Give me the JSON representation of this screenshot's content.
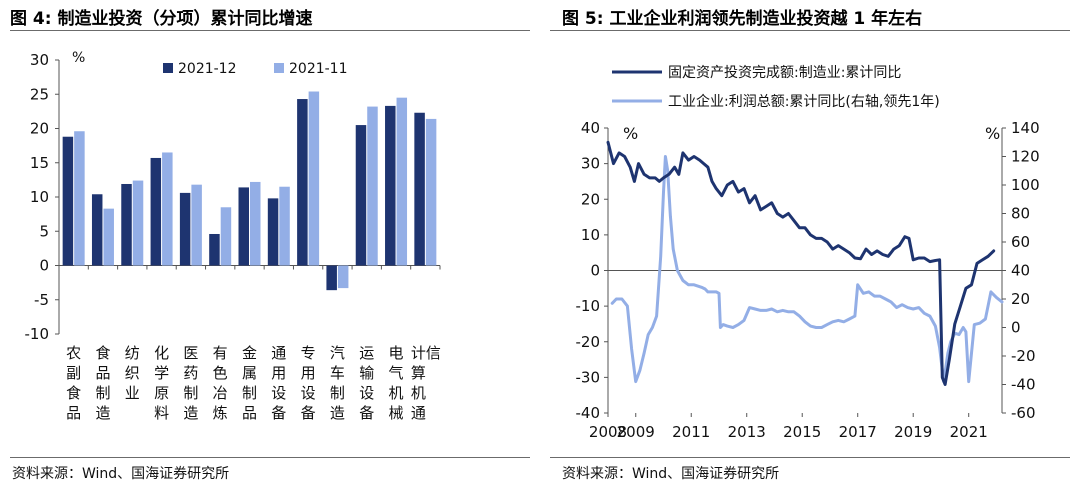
{
  "colors": {
    "navy": "#1e3470",
    "lightblue": "#93aee6",
    "axis": "#555555",
    "rule": "#6b6b6b"
  },
  "chart_data": [
    {
      "type": "bar",
      "title": "图 4:  制造业投资（分项）累计同比增速",
      "unit_label": "%",
      "source": "资料来源：Wind、国海证券研究所",
      "ylim": [
        -10,
        30
      ],
      "yticks": [
        -10,
        -5,
        0,
        5,
        10,
        15,
        20,
        25,
        30
      ],
      "legend_position": "top-right",
      "grid": false,
      "categories": [
        "农副食品",
        "食品制造",
        "纺织业",
        "化学原料",
        "医药制造",
        "有色冶炼",
        "金属制品",
        "通用设备",
        "专用设备",
        "汽车制造",
        "运输设备",
        "电气机械",
        "计算机通信"
      ],
      "series": [
        {
          "name": "2021-12",
          "color": "#1e3470",
          "values": [
            18.8,
            10.4,
            11.9,
            15.7,
            10.6,
            4.6,
            11.4,
            9.8,
            24.3,
            -3.6,
            20.5,
            23.3,
            22.3
          ]
        },
        {
          "name": "2021-11",
          "color": "#93aee6",
          "values": [
            19.6,
            8.3,
            12.4,
            16.5,
            11.8,
            8.5,
            12.2,
            11.5,
            25.4,
            -3.3,
            23.2,
            24.5,
            21.4
          ]
        }
      ]
    },
    {
      "type": "line",
      "title": "图 5:  工业企业利润领先制造业投资越 1 年左右",
      "source": "资料来源：Wind、国海证券研究所",
      "left_unit_label": "%",
      "right_unit_label": "%",
      "ylim": [
        -40,
        40
      ],
      "yticks": [
        -40,
        -30,
        -20,
        -10,
        0,
        10,
        20,
        30,
        40
      ],
      "y2lim": [
        -60,
        140
      ],
      "y2ticks": [
        -60,
        -40,
        -20,
        0,
        20,
        40,
        60,
        80,
        100,
        120,
        140
      ],
      "xlim": [
        2008,
        2022.2
      ],
      "xticks": [
        2008,
        2009,
        2011,
        2013,
        2015,
        2017,
        2019,
        2021
      ],
      "legend_position": "top",
      "grid": false,
      "series": [
        {
          "name": "固定资产投资完成额:制造业:累计同比",
          "color": "#1e3470",
          "axis": "left",
          "x": [
            2008.0,
            2008.2,
            2008.4,
            2008.6,
            2008.8,
            2008.95,
            2009.1,
            2009.3,
            2009.5,
            2009.7,
            2009.85,
            2010.0,
            2010.2,
            2010.4,
            2010.55,
            2010.7,
            2010.9,
            2011.1,
            2011.3,
            2011.45,
            2011.6,
            2011.75,
            2011.9,
            2012.1,
            2012.3,
            2012.5,
            2012.7,
            2012.9,
            2013.1,
            2013.3,
            2013.5,
            2013.7,
            2013.9,
            2014.1,
            2014.3,
            2014.5,
            2014.7,
            2014.9,
            2015.1,
            2015.3,
            2015.5,
            2015.7,
            2015.9,
            2016.1,
            2016.3,
            2016.5,
            2016.7,
            2016.9,
            2017.1,
            2017.3,
            2017.5,
            2017.7,
            2017.9,
            2018.1,
            2018.3,
            2018.5,
            2018.7,
            2018.85,
            2019.0,
            2019.2,
            2019.4,
            2019.6,
            2019.8,
            2019.95,
            2020.05,
            2020.15,
            2020.3,
            2020.5,
            2020.7,
            2020.9,
            2021.1,
            2021.3,
            2021.5,
            2021.7,
            2021.9
          ],
          "values": [
            36,
            30,
            33,
            32,
            29,
            25,
            30,
            27,
            26,
            26,
            25,
            26,
            27,
            29,
            27,
            33,
            31,
            32,
            31,
            30,
            29,
            25,
            23,
            21,
            24,
            25,
            22,
            23,
            19,
            21,
            17,
            18,
            19,
            16,
            15,
            16,
            14,
            12,
            12,
            10,
            9,
            9,
            8,
            6,
            7,
            6,
            5,
            3.5,
            3.3,
            6,
            4.5,
            5.5,
            4.5,
            4,
            6,
            7,
            9.5,
            9,
            3,
            3.5,
            3.5,
            2.5,
            2.8,
            3,
            -30,
            -32,
            -25,
            -15,
            -10,
            -5,
            -4,
            2,
            3,
            4,
            5.5
          ]
        },
        {
          "name": "工业企业:利润总额:累计同比(右轴,领先1年)",
          "color": "#93aee6",
          "axis": "right",
          "x": [
            2008.15,
            2008.3,
            2008.5,
            2008.7,
            2008.85,
            2009.0,
            2009.15,
            2009.3,
            2009.45,
            2009.6,
            2009.75,
            2009.9,
            2010.0,
            2010.07,
            2010.15,
            2010.25,
            2010.35,
            2010.5,
            2010.7,
            2010.9,
            2011.1,
            2011.25,
            2011.4,
            2011.5,
            2011.6,
            2011.75,
            2011.9,
            2012.0,
            2012.05,
            2012.15,
            2012.3,
            2012.5,
            2012.7,
            2012.9,
            2013.1,
            2013.3,
            2013.5,
            2013.7,
            2013.9,
            2014.1,
            2014.3,
            2014.5,
            2014.7,
            2014.9,
            2015.1,
            2015.3,
            2015.5,
            2015.7,
            2015.9,
            2016.1,
            2016.3,
            2016.5,
            2016.7,
            2016.9,
            2017.0,
            2017.2,
            2017.4,
            2017.6,
            2017.8,
            2018.0,
            2018.2,
            2018.4,
            2018.6,
            2018.8,
            2019.0,
            2019.2,
            2019.4,
            2019.6,
            2019.8,
            2019.95,
            2020.1,
            2020.25,
            2020.35,
            2020.5,
            2020.65,
            2020.8,
            2020.9,
            2021.0,
            2021.2,
            2021.4,
            2021.6,
            2021.8,
            2022.0,
            2022.2
          ],
          "values": [
            17,
            20,
            20,
            15,
            -15,
            -38,
            -30,
            -18,
            -5,
            0,
            8,
            50,
            95,
            120,
            110,
            78,
            55,
            40,
            33,
            30,
            30,
            29,
            28,
            27,
            25,
            25,
            25,
            24,
            0,
            2,
            1,
            0,
            2,
            5,
            14,
            13,
            12,
            12,
            13,
            11,
            12,
            11,
            11,
            8,
            4,
            1,
            0,
            0,
            2,
            4,
            5,
            4,
            6,
            8,
            30,
            24,
            25,
            22,
            22,
            20,
            18,
            14,
            16,
            14,
            13,
            14,
            10,
            8,
            1,
            -14,
            -38,
            -18,
            -10,
            -4,
            -5,
            0,
            -3,
            -38,
            2,
            3,
            6,
            25,
            21,
            18
          ]
        }
      ]
    }
  ]
}
